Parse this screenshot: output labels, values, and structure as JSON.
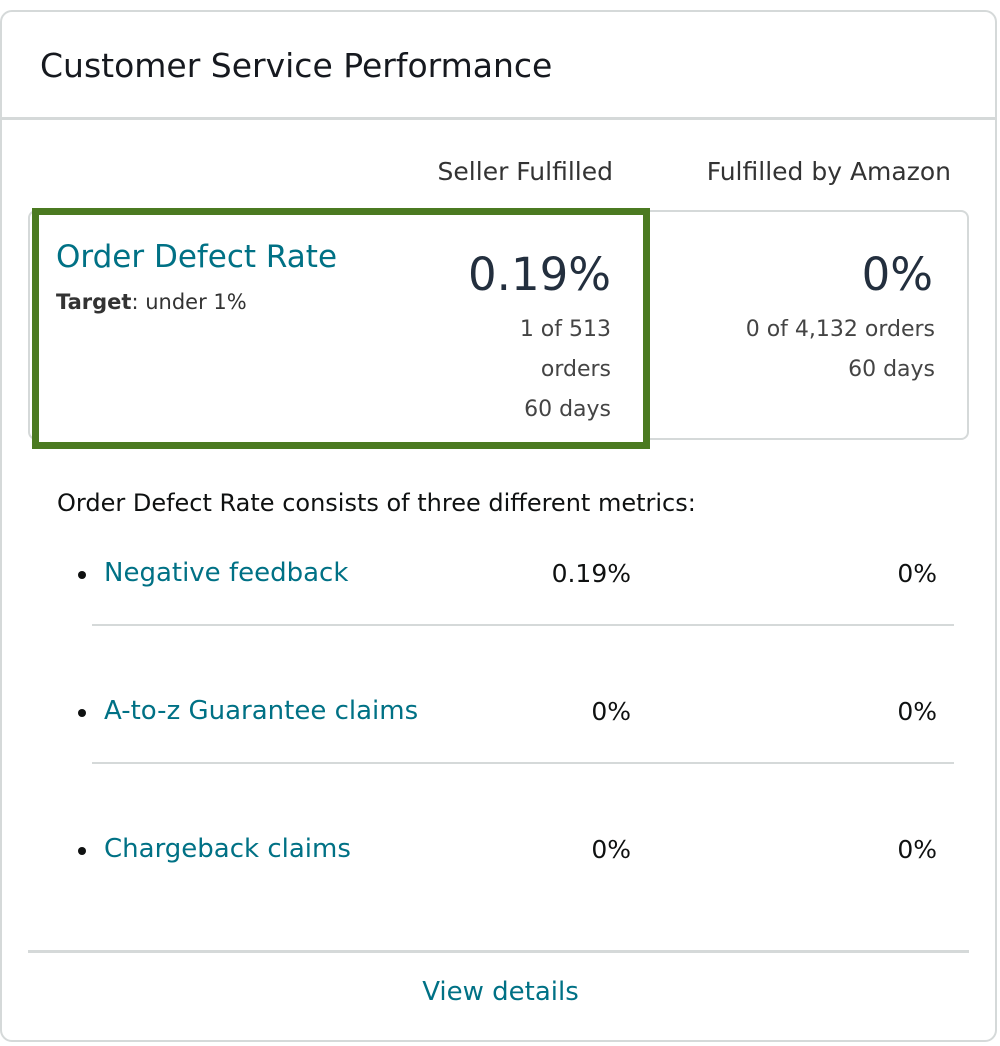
{
  "card": {
    "title": "Customer Service Performance"
  },
  "columns": {
    "seller_fulfilled": "Seller Fulfilled",
    "fulfilled_by_amazon": "Fulfilled by Amazon"
  },
  "order_defect_rate": {
    "label": "Order Defect Rate",
    "target_label": "Target",
    "target_value": ": under 1%",
    "seller_fulfilled": {
      "value": "0.19%",
      "orders_line1": "1 of 513",
      "orders_line2": "orders",
      "period": "60 days"
    },
    "fulfilled_by_amazon": {
      "value": "0%",
      "orders": "0 of 4,132 orders",
      "period": "60 days"
    },
    "highlight_color": "#4b7a21"
  },
  "breakdown": {
    "intro": "Order Defect Rate consists of three different metrics:",
    "metrics": [
      {
        "label": "Negative feedback",
        "seller_fulfilled": "0.19%",
        "fulfilled_by_amazon": "0%"
      },
      {
        "label": "A-to-z Guarantee claims",
        "seller_fulfilled": "0%",
        "fulfilled_by_amazon": "0%"
      },
      {
        "label": "Chargeback claims",
        "seller_fulfilled": "0%",
        "fulfilled_by_amazon": "0%"
      }
    ]
  },
  "footer": {
    "view_details": "View details"
  },
  "colors": {
    "link": "#007185",
    "border": "#d5d9d9",
    "highlight": "#4b7a21"
  }
}
